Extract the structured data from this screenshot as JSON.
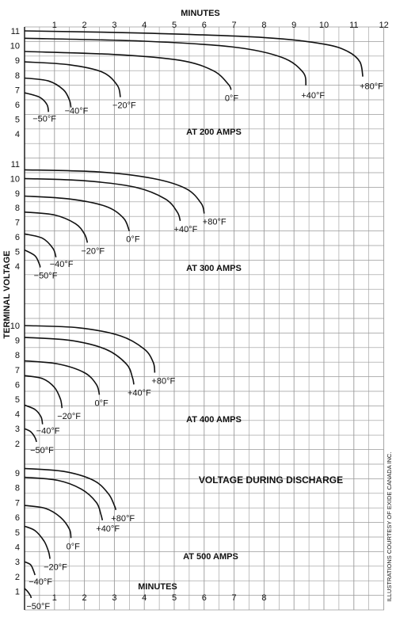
{
  "colors": {
    "ink": "#111111",
    "grid": "#9a9a9a",
    "paper": "#ffffff"
  },
  "ylabel": "TERMINAL VOLTAGE",
  "caption": "VOLTAGE DURING DISCHARGE",
  "credit": "ILLUSTRATIONS COURTESY OF EXIDE CANADA INC.",
  "chart_data": [
    {
      "type": "line",
      "title": "AT 200 AMPS",
      "xlabel": "MINUTES",
      "x_ticks": [
        "1",
        "2",
        "3",
        "4",
        "5",
        "6",
        "7",
        "8",
        "9",
        "10",
        "11",
        "12"
      ],
      "y_ticks": [
        "4",
        "5",
        "6",
        "7",
        "8",
        "9",
        "10",
        "11"
      ],
      "xlim": [
        0,
        12
      ],
      "ylim": [
        4,
        11
      ],
      "series": [
        {
          "name": "+80°F",
          "points": [
            [
              0,
              11.0
            ],
            [
              4,
              10.85
            ],
            [
              8,
              10.55
            ],
            [
              10,
              10.1
            ],
            [
              10.8,
              9.6
            ],
            [
              11.2,
              8.9
            ],
            [
              11.3,
              7.9
            ]
          ]
        },
        {
          "name": "+40°F",
          "points": [
            [
              0,
              10.5
            ],
            [
              4,
              10.3
            ],
            [
              7,
              9.9
            ],
            [
              8.6,
              9.2
            ],
            [
              9.3,
              8.2
            ],
            [
              9.4,
              7.3
            ]
          ]
        },
        {
          "name": "0°F",
          "points": [
            [
              0,
              9.6
            ],
            [
              3,
              9.4
            ],
            [
              5.2,
              9.0
            ],
            [
              6.3,
              8.3
            ],
            [
              6.8,
              7.4
            ],
            [
              6.9,
              7.0
            ]
          ]
        },
        {
          "name": "−20°F",
          "points": [
            [
              0,
              8.9
            ],
            [
              1.5,
              8.7
            ],
            [
              2.6,
              8.2
            ],
            [
              3.1,
              7.3
            ],
            [
              3.2,
              6.5
            ]
          ]
        },
        {
          "name": "−40°F",
          "points": [
            [
              0,
              7.8
            ],
            [
              0.8,
              7.6
            ],
            [
              1.3,
              7.0
            ],
            [
              1.5,
              6.3
            ],
            [
              1.55,
              5.8
            ]
          ]
        },
        {
          "name": "−50°F",
          "points": [
            [
              0,
              6.8
            ],
            [
              0.5,
              6.5
            ],
            [
              0.75,
              6.0
            ],
            [
              0.8,
              5.5
            ]
          ]
        }
      ]
    },
    {
      "type": "line",
      "title": "AT 300 AMPS",
      "y_ticks": [
        "4",
        "5",
        "6",
        "7",
        "8",
        "9",
        "10",
        "11"
      ],
      "xlim": [
        0,
        12
      ],
      "ylim": [
        3.5,
        11
      ],
      "series": [
        {
          "name": "+80°F",
          "points": [
            [
              0,
              10.6
            ],
            [
              2.5,
              10.45
            ],
            [
              4.3,
              10.0
            ],
            [
              5.4,
              9.3
            ],
            [
              5.9,
              8.3
            ],
            [
              6.0,
              7.6
            ]
          ]
        },
        {
          "name": "+40°F",
          "points": [
            [
              0,
              10.0
            ],
            [
              2,
              9.85
            ],
            [
              3.7,
              9.4
            ],
            [
              4.7,
              8.6
            ],
            [
              5.1,
              7.7
            ],
            [
              5.2,
              7.1
            ]
          ]
        },
        {
          "name": "0°F",
          "points": [
            [
              0,
              8.8
            ],
            [
              1.5,
              8.6
            ],
            [
              2.7,
              8.1
            ],
            [
              3.3,
              7.3
            ],
            [
              3.5,
              6.4
            ]
          ]
        },
        {
          "name": "−20°F",
          "points": [
            [
              0,
              7.7
            ],
            [
              1.0,
              7.5
            ],
            [
              1.7,
              6.9
            ],
            [
              2.0,
              6.2
            ],
            [
              2.1,
              5.6
            ]
          ]
        },
        {
          "name": "−40°F",
          "points": [
            [
              0,
              6.2
            ],
            [
              0.6,
              5.9
            ],
            [
              0.95,
              5.2
            ],
            [
              1.05,
              4.6
            ]
          ]
        },
        {
          "name": "−50°F",
          "points": [
            [
              0,
              5.1
            ],
            [
              0.35,
              4.7
            ],
            [
              0.5,
              4.1
            ],
            [
              0.52,
              3.9
            ]
          ]
        }
      ]
    },
    {
      "type": "line",
      "title": "AT 400 AMPS",
      "y_ticks": [
        "2",
        "3",
        "4",
        "5",
        "6",
        "7",
        "8",
        "9",
        "10"
      ],
      "xlim": [
        0,
        12
      ],
      "ylim": [
        1.5,
        10.3
      ],
      "series": [
        {
          "name": "+80°F",
          "points": [
            [
              0,
              10.0
            ],
            [
              1.8,
              9.85
            ],
            [
              3.2,
              9.3
            ],
            [
              4.0,
              8.4
            ],
            [
              4.3,
              7.5
            ],
            [
              4.35,
              6.8
            ]
          ]
        },
        {
          "name": "+40°F",
          "points": [
            [
              0,
              9.2
            ],
            [
              1.5,
              9.0
            ],
            [
              2.7,
              8.4
            ],
            [
              3.4,
              7.4
            ],
            [
              3.6,
              6.5
            ],
            [
              3.65,
              6.0
            ]
          ]
        },
        {
          "name": "0°F",
          "points": [
            [
              0,
              7.6
            ],
            [
              1.1,
              7.4
            ],
            [
              2.0,
              6.8
            ],
            [
              2.4,
              6.0
            ],
            [
              2.5,
              5.3
            ]
          ]
        },
        {
          "name": "−20°F",
          "points": [
            [
              0,
              6.6
            ],
            [
              0.6,
              6.4
            ],
            [
              1.0,
              5.8
            ],
            [
              1.2,
              5.0
            ],
            [
              1.25,
              4.4
            ]
          ]
        },
        {
          "name": "−40°F",
          "points": [
            [
              0,
              4.6
            ],
            [
              0.35,
              4.3
            ],
            [
              0.55,
              3.8
            ],
            [
              0.6,
              3.3
            ]
          ]
        },
        {
          "name": "−50°F",
          "points": [
            [
              0,
              3.0
            ],
            [
              0.2,
              2.8
            ],
            [
              0.35,
              2.4
            ],
            [
              0.4,
              2.1
            ]
          ]
        }
      ]
    },
    {
      "type": "line",
      "title": "AT 500 AMPS",
      "xlabel": "MINUTES",
      "x_ticks": [
        "1",
        "2",
        "3",
        "4",
        "5",
        "6",
        "7",
        "8"
      ],
      "y_ticks": [
        "1",
        "2",
        "3",
        "4",
        "5",
        "6",
        "7",
        "8",
        "9"
      ],
      "xlim": [
        0,
        12
      ],
      "ylim": [
        0.5,
        9.7
      ],
      "series": [
        {
          "name": "+80°F",
          "points": [
            [
              0,
              9.3
            ],
            [
              1.3,
              9.1
            ],
            [
              2.3,
              8.5
            ],
            [
              2.8,
              7.6
            ],
            [
              3.0,
              6.8
            ],
            [
              3.05,
              6.5
            ]
          ]
        },
        {
          "name": "+40°F",
          "points": [
            [
              0,
              8.7
            ],
            [
              1.1,
              8.5
            ],
            [
              1.9,
              7.9
            ],
            [
              2.4,
              7.0
            ],
            [
              2.55,
              6.2
            ],
            [
              2.6,
              5.8
            ]
          ]
        },
        {
          "name": "0°F",
          "points": [
            [
              0,
              6.8
            ],
            [
              0.7,
              6.6
            ],
            [
              1.2,
              6.0
            ],
            [
              1.5,
              5.2
            ],
            [
              1.55,
              4.6
            ]
          ]
        },
        {
          "name": "−20°F",
          "points": [
            [
              0,
              5.4
            ],
            [
              0.35,
              5.1
            ],
            [
              0.65,
              4.4
            ],
            [
              0.8,
              3.7
            ],
            [
              0.85,
              3.2
            ]
          ]
        },
        {
          "name": "−40°F",
          "points": [
            [
              0,
              3.0
            ],
            [
              0.2,
              2.8
            ],
            [
              0.3,
              2.4
            ],
            [
              0.35,
              2.1
            ]
          ]
        },
        {
          "name": "−50°F",
          "points": [
            [
              0,
              1.2
            ],
            [
              0.1,
              1.0
            ],
            [
              0.2,
              0.7
            ],
            [
              0.22,
              0.55
            ]
          ]
        }
      ]
    }
  ]
}
